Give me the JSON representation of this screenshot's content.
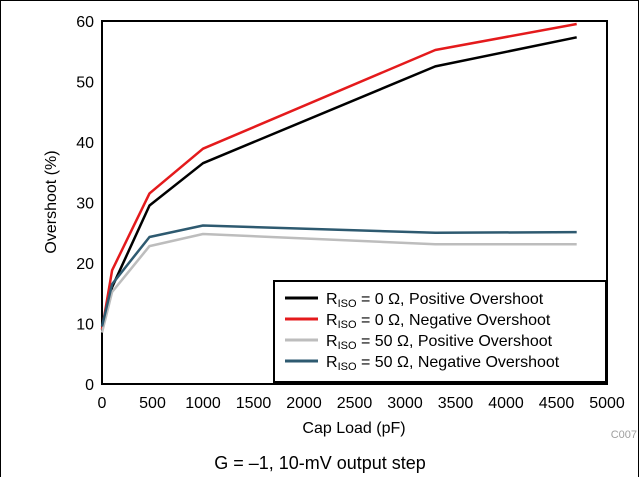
{
  "chart_data": {
    "type": "line",
    "xlabel": "Cap Load (pF)",
    "ylabel": "Overshoot (%)",
    "xlim": [
      0,
      5000
    ],
    "ylim": [
      0,
      60
    ],
    "xticks": [
      0,
      500,
      1000,
      1500,
      2000,
      2500,
      3000,
      3500,
      4000,
      4500,
      5000
    ],
    "yticks": [
      0,
      10,
      20,
      30,
      40,
      50,
      60
    ],
    "grid": false,
    "legend_position": "bottom-right",
    "series": [
      {
        "name": "RISO = 0 Ω, Positive Overshoot",
        "label_main": "R",
        "label_sub": "ISO",
        "label_rest": " = 0 Ω, Positive Overshoot",
        "color": "#000000",
        "x": [
          0,
          100,
          470,
          1000,
          3300,
          4700
        ],
        "y": [
          9,
          16,
          29.5,
          36.5,
          52.5,
          57.3
        ]
      },
      {
        "name": "RISO = 0 Ω, Negative Overshoot",
        "label_main": "R",
        "label_sub": "ISO",
        "label_rest": " = 0 Ω, Negative Overshoot",
        "color": "#e41a1c",
        "x": [
          0,
          100,
          470,
          1000,
          3300,
          4700
        ],
        "y": [
          9,
          18.8,
          31.5,
          38.9,
          55.2,
          59.5
        ]
      },
      {
        "name": "RISO = 50 Ω, Positive Overshoot",
        "label_main": "R",
        "label_sub": "ISO",
        "label_rest": " = 50 Ω, Positive Overshoot",
        "color": "#bdbdbd",
        "x": [
          0,
          100,
          470,
          1000,
          3300,
          4700
        ],
        "y": [
          8.5,
          15.2,
          22.8,
          24.8,
          23.1,
          23.1
        ]
      },
      {
        "name": "RISO = 50 Ω, Negative Overshoot",
        "label_main": "R",
        "label_sub": "ISO",
        "label_rest": " = 50 Ω, Negative Overshoot",
        "color": "#2e5a70",
        "x": [
          0,
          100,
          470,
          1000,
          3300,
          4700
        ],
        "y": [
          9.5,
          16.5,
          24.3,
          26.2,
          25,
          25.1
        ]
      }
    ]
  },
  "figure_code": "C007",
  "caption": "G = –1, 10-mV output step"
}
